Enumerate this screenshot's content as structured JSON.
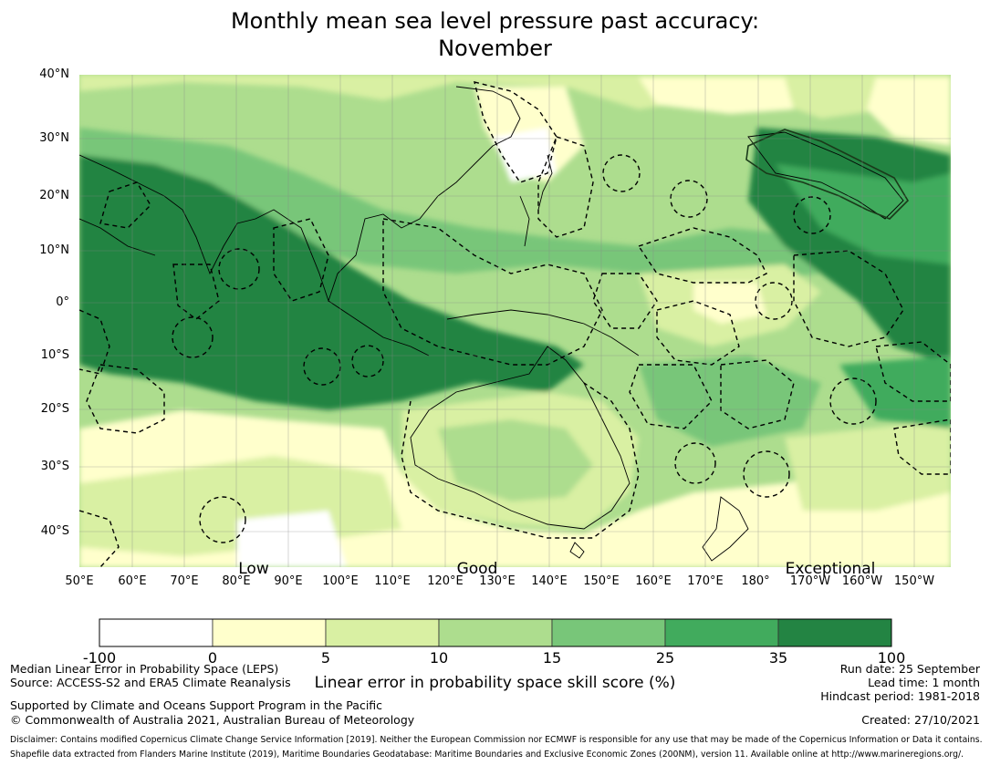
{
  "title": {
    "line1": "Monthly mean sea level pressure past accuracy:",
    "line2": "November"
  },
  "map": {
    "lat_labels": [
      "40°N",
      "30°N",
      "20°N",
      "10°N",
      "0°",
      "10°S",
      "20°S",
      "30°S",
      "40°S"
    ],
    "lon_labels": [
      "50°E",
      "60°E",
      "70°E",
      "80°E",
      "90°E",
      "100°E",
      "110°E",
      "120°E",
      "130°E",
      "140°E",
      "150°E",
      "160°E",
      "170°E",
      "180°",
      "170°W",
      "160°W",
      "150°W"
    ],
    "category_words": [
      "Low",
      "Good",
      "Exceptional"
    ]
  },
  "colorbar": {
    "ticks": [
      "-100",
      "0",
      "5",
      "10",
      "15",
      "25",
      "35",
      "100"
    ],
    "colors": [
      "#ffffff",
      "#ffffcc",
      "#d9f0a3",
      "#addd8e",
      "#78c679",
      "#41ab5d",
      "#238443"
    ],
    "label": "Linear error in probability space skill score (%)"
  },
  "footer": {
    "left1": "Median Linear Error in Probability Space (LEPS)",
    "left2": "Source: ACCESS-S2 and ERA5 Climate Reanalysis",
    "left3": "Supported by Climate and Oceans Support Program in the Pacific",
    "left4": "© Commonwealth of Australia 2021, Australian Bureau of Meteorology",
    "right1": "Run date: 25 September",
    "right2": "Lead time: 1 month",
    "right3": "Hindcast period: 1981-2018",
    "right4": "Created: 27/10/2021",
    "disclaimer1": "Disclaimer: Contains modified Copernicus Climate Change Service Information [2019]. Neither the European Commission nor ECMWF is responsible for any use that may be made of the Copernicus Information or Data it contains.",
    "disclaimer2": "Shapefile data extracted from Flanders Marine Institute (2019), Maritime Boundaries Geodatabase: Maritime Boundaries and Exclusive Economic Zones (200NM), version 11. Available online at http://www.marineregions.org/."
  }
}
